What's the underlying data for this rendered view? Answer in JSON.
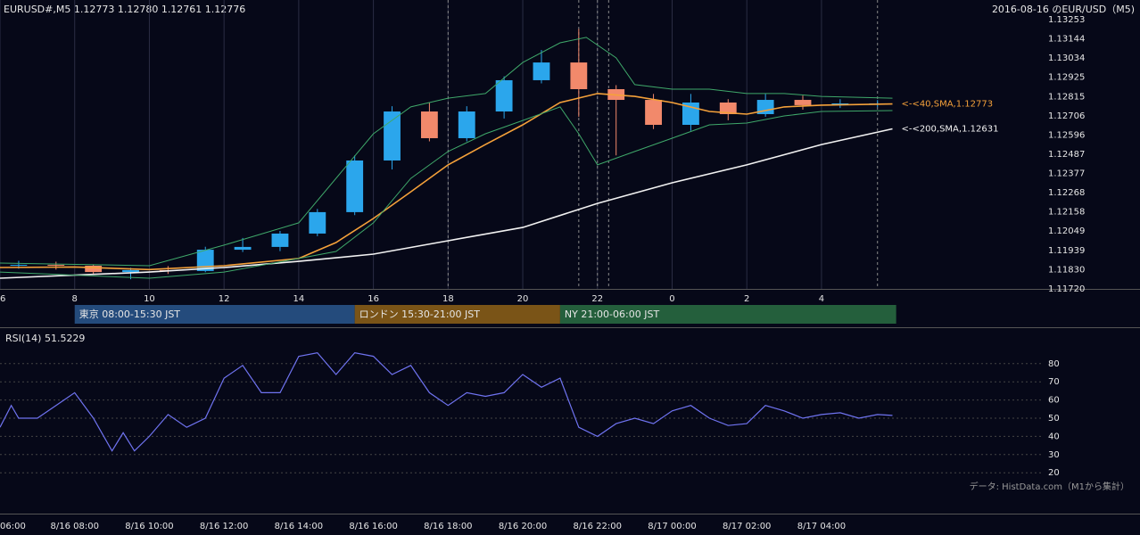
{
  "chart_data": [
    {
      "type": "candlestick",
      "title": "EURUSD#,M5 1.12773 1.12780 1.12761 1.12776",
      "subtitle": "2016-08-16 のEUR/USD（M5)",
      "xlim": [
        6,
        33.95
      ],
      "xticks": [
        6,
        8,
        10,
        12,
        14,
        16,
        18,
        20,
        22,
        {
          "value": 24,
          "label": "0"
        },
        {
          "value": 26,
          "label": "2"
        },
        {
          "value": 28,
          "label": "4"
        }
      ],
      "ylim": [
        1.1172,
        1.13253
      ],
      "yticks": [
        {
          "value": 1.1172,
          "label": "1.11720"
        },
        {
          "value": 1.1183,
          "label": "1.11830"
        },
        1.11939,
        1.12049,
        1.12158,
        1.12268,
        1.12377,
        1.12487,
        1.12596,
        1.12706,
        1.12815,
        1.12925,
        1.13034,
        1.13144,
        1.13253
      ],
      "grid": true,
      "up_color": "#2ba6ec",
      "down_color": "#f2896b",
      "candles": {
        "x": [
          6.5,
          7.5,
          8.5,
          9.5,
          10.5,
          11.5,
          12.5,
          13.5,
          14.5,
          15.5,
          16.5,
          17.5,
          18.5,
          19.5,
          20.5,
          21.5,
          22.5,
          23.5,
          24.5,
          25.5,
          26.5,
          27.5,
          28.5,
          29.5
        ],
        "open": [
          1.11852,
          1.11857,
          1.11852,
          1.11816,
          1.11827,
          1.11822,
          1.11943,
          1.11959,
          1.12035,
          1.12157,
          1.12451,
          1.1273,
          1.12578,
          1.1273,
          1.12908,
          1.13009,
          1.12857,
          1.12796,
          1.12654,
          1.12781,
          1.12715,
          1.12796,
          1.12766,
          1.12776
        ],
        "high": [
          1.1188,
          1.11875,
          1.1186,
          1.1184,
          1.1185,
          1.1196,
          1.1201,
          1.1205,
          1.12175,
          1.1248,
          1.1276,
          1.1278,
          1.1276,
          1.1293,
          1.1308,
          1.132,
          1.1288,
          1.1283,
          1.1283,
          1.128,
          1.1283,
          1.1282,
          1.128,
          1.12795
        ],
        "low": [
          1.11835,
          1.1183,
          1.118,
          1.11775,
          1.11805,
          1.11815,
          1.1193,
          1.11935,
          1.1202,
          1.1214,
          1.124,
          1.1256,
          1.1256,
          1.1269,
          1.1289,
          1.127,
          1.1248,
          1.1263,
          1.1262,
          1.1268,
          1.127,
          1.1274,
          1.1275,
          1.12755
        ],
        "close": [
          1.11857,
          1.11852,
          1.11816,
          1.11827,
          1.11822,
          1.11943,
          1.11959,
          1.12035,
          1.12157,
          1.12451,
          1.1273,
          1.12578,
          1.1273,
          1.12908,
          1.13009,
          1.12857,
          1.12796,
          1.12654,
          1.12781,
          1.12715,
          1.12796,
          1.12766,
          1.12776,
          1.12776
        ]
      },
      "series": [
        {
          "name": "<-<200,SMA,1.12631",
          "color": "#f2f2f2",
          "x": [
            6,
            10,
            12,
            14,
            16,
            18,
            20,
            22,
            24,
            26,
            28,
            29.9
          ],
          "values": [
            1.11781,
            1.11816,
            1.11842,
            1.11877,
            1.11918,
            1.11994,
            1.1207,
            1.12207,
            1.12324,
            1.12426,
            1.12542,
            1.12631
          ]
        },
        {
          "name": "<-<40,SMA,1.12773",
          "color": "#f5a13a",
          "x": [
            6,
            8,
            10,
            12,
            14,
            15,
            16,
            17,
            18,
            19,
            20,
            21,
            22,
            23,
            24,
            25,
            26,
            27,
            28,
            29.9
          ],
          "values": [
            1.11842,
            1.11845,
            1.1183,
            1.11852,
            1.11893,
            1.11984,
            1.12121,
            1.12273,
            1.12426,
            1.12542,
            1.12654,
            1.12781,
            1.12832,
            1.12816,
            1.12781,
            1.1273,
            1.12715,
            1.12756,
            1.12766,
            1.12773
          ]
        },
        {
          "color": "#3fa86a",
          "x": [
            6,
            10,
            12,
            14,
            16,
            17,
            18,
            19,
            20,
            21,
            21.7,
            22.5,
            23,
            24,
            25,
            26,
            27,
            28,
            29.9
          ],
          "values": [
            1.11867,
            1.11852,
            1.11969,
            1.12096,
            1.12603,
            1.12756,
            1.12806,
            1.12832,
            1.13009,
            1.13121,
            1.13152,
            1.13035,
            1.12883,
            1.12857,
            1.12857,
            1.12832,
            1.12832,
            1.12816,
            1.12806
          ]
        },
        {
          "color": "#3fa86a",
          "x": [
            6,
            10,
            12,
            14,
            15,
            16,
            17,
            18,
            19,
            20,
            21,
            21.5,
            22,
            23,
            24,
            25,
            26,
            27,
            28,
            29.9
          ],
          "values": [
            1.11816,
            1.11781,
            1.11816,
            1.11893,
            1.11933,
            1.12096,
            1.12349,
            1.12502,
            1.12603,
            1.12679,
            1.12756,
            1.12603,
            1.12426,
            1.12502,
            1.12578,
            1.12654,
            1.12664,
            1.12705,
            1.1273,
            1.12735
          ]
        }
      ],
      "vlines": [
        18,
        21.5,
        22,
        22.3,
        29.5
      ],
      "sessions": [
        {
          "label": "東京 08:00-15:30 JST",
          "start": 8,
          "end": 15.5,
          "color": "#244b7c"
        },
        {
          "label": "ロンドン 15:30-21:00 JST",
          "start": 15.5,
          "end": 21,
          "color": "#7a5417"
        },
        {
          "label": "NY 21:00-06:00 JST",
          "start": 21,
          "end": 30,
          "color": "#245f3c"
        }
      ]
    },
    {
      "type": "line",
      "title": "RSI(14) 51.5229",
      "annotation": "データ: HistData.com（M1から集計）",
      "xlim": [
        6,
        33.95
      ],
      "xticks": [
        {
          "value": 6,
          "label": "06:00"
        },
        {
          "value": 8,
          "label": "8/16 08:00"
        },
        {
          "value": 10,
          "label": "8/16 10:00"
        },
        {
          "value": 12,
          "label": "8/16 12:00"
        },
        {
          "value": 14,
          "label": "8/16 14:00"
        },
        {
          "value": 16,
          "label": "8/16 16:00"
        },
        {
          "value": 18,
          "label": "8/16 18:00"
        },
        {
          "value": 20,
          "label": "8/16 20:00"
        },
        {
          "value": 22,
          "label": "8/16 22:00"
        },
        {
          "value": 24,
          "label": "8/17 00:00"
        },
        {
          "value": 26,
          "label": "8/17 02:00"
        },
        {
          "value": 28,
          "label": "8/17 04:00"
        }
      ],
      "ylim": [
        0,
        100
      ],
      "yticks": [
        20,
        30,
        40,
        50,
        60,
        70,
        80
      ],
      "grid": true,
      "series": [
        {
          "color": "#6f73f0",
          "x": [
            6,
            6.3,
            6.5,
            7,
            7.5,
            8,
            8.5,
            9,
            9.3,
            9.6,
            10,
            10.5,
            11,
            11.5,
            12,
            12.5,
            13,
            13.5,
            14,
            14.5,
            15,
            15.5,
            16,
            16.5,
            17,
            17.5,
            18,
            18.5,
            19,
            19.5,
            20,
            20.5,
            21,
            21.5,
            22,
            22.5,
            23,
            23.5,
            24,
            24.5,
            25,
            25.5,
            26,
            26.5,
            27,
            27.5,
            28,
            28.5,
            29,
            29.5,
            29.9
          ],
          "values": [
            45,
            57,
            50,
            50,
            57,
            64,
            50,
            32,
            42,
            32,
            40,
            52,
            45,
            50,
            72,
            79,
            64,
            64,
            84,
            86,
            74,
            86,
            84,
            74,
            79,
            64,
            57,
            64,
            62,
            64,
            74,
            67,
            72,
            45,
            40,
            47,
            50,
            47,
            54,
            57,
            50,
            46,
            47,
            57,
            54,
            50,
            52,
            53,
            50,
            52,
            51.5229
          ]
        }
      ]
    }
  ]
}
